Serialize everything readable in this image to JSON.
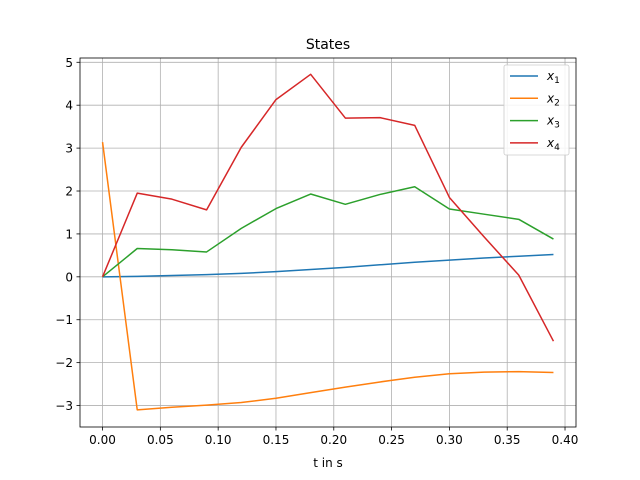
{
  "chart_data": {
    "type": "line",
    "title": "States",
    "xlabel": "t in s",
    "ylabel": "",
    "xlim": [
      -0.0195,
      0.4095
    ],
    "ylim": [
      -3.5,
      5.1
    ],
    "xticks": [
      0.0,
      0.05,
      0.1,
      0.15,
      0.2,
      0.25,
      0.3,
      0.35,
      0.4
    ],
    "xtick_labels": [
      "0.00",
      "0.05",
      "0.10",
      "0.15",
      "0.20",
      "0.25",
      "0.30",
      "0.35",
      "0.40"
    ],
    "yticks": [
      -3,
      -2,
      -1,
      0,
      1,
      2,
      3,
      4,
      5
    ],
    "ytick_labels": [
      "−3",
      "−2",
      "−1",
      "0",
      "1",
      "2",
      "3",
      "4",
      "5"
    ],
    "grid": true,
    "legend_position": "top-right",
    "x": [
      0.0,
      0.03,
      0.06,
      0.09,
      0.12,
      0.15,
      0.18,
      0.21,
      0.24,
      0.27,
      0.3,
      0.33,
      0.36,
      0.39
    ],
    "series": [
      {
        "name": "x",
        "subscript": "1",
        "color": "#1f77b4",
        "values": [
          0.0,
          0.01,
          0.03,
          0.05,
          0.08,
          0.12,
          0.17,
          0.22,
          0.28,
          0.34,
          0.39,
          0.44,
          0.48,
          0.52
        ]
      },
      {
        "name": "x",
        "subscript": "2",
        "color": "#ff7f0e",
        "values": [
          3.14,
          -3.1,
          -3.04,
          -2.99,
          -2.93,
          -2.83,
          -2.7,
          -2.57,
          -2.45,
          -2.34,
          -2.26,
          -2.22,
          -2.21,
          -2.23
        ]
      },
      {
        "name": "x",
        "subscript": "3",
        "color": "#2ca02c",
        "values": [
          0.0,
          0.66,
          0.63,
          0.58,
          1.13,
          1.59,
          1.93,
          1.69,
          1.92,
          2.1,
          1.58,
          1.46,
          1.34,
          0.88
        ]
      },
      {
        "name": "x",
        "subscript": "4",
        "color": "#d62728",
        "values": [
          0.0,
          1.95,
          1.81,
          1.56,
          3.02,
          4.13,
          4.72,
          3.7,
          3.71,
          3.53,
          1.85,
          0.93,
          0.04,
          -1.5
        ]
      }
    ]
  }
}
